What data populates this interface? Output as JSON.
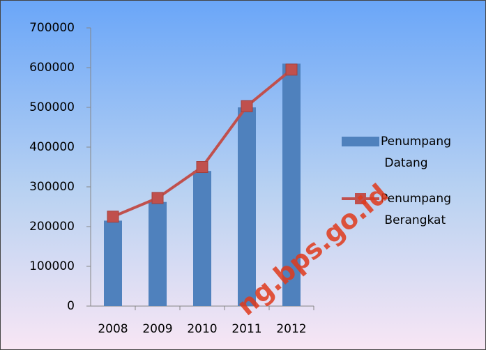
{
  "chart_data": {
    "type": "bar",
    "categories": [
      "2008",
      "2009",
      "2010",
      "2011",
      "2012"
    ],
    "series": [
      {
        "name": "Penumpang Datang",
        "type": "bar",
        "color": "#4f81bd",
        "values": [
          215000,
          262000,
          340000,
          500000,
          610000
        ]
      },
      {
        "name": "Penumpang Berangkat",
        "type": "line",
        "color": "#c0504d",
        "values": [
          225000,
          272000,
          350000,
          503000,
          595000
        ]
      }
    ],
    "ylim": [
      0,
      700000
    ],
    "yticks": [
      0,
      100000,
      200000,
      300000,
      400000,
      500000,
      600000,
      700000
    ],
    "grid": false,
    "legend": "right",
    "watermark": "ng.bps.go.id"
  }
}
